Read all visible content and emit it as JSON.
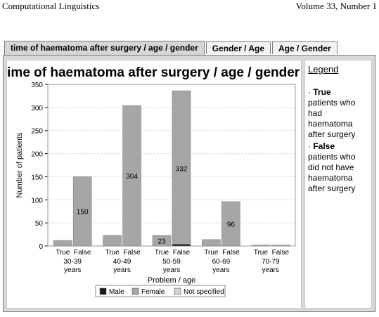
{
  "running_head": {
    "left": "Computational Linguistics",
    "right": "Volume 33, Number 1"
  },
  "tabs": [
    {
      "label": "time of haematoma after surgery / age / gender",
      "active": true
    },
    {
      "label": "Gender / Age",
      "active": false
    },
    {
      "label": "Age / Gender",
      "active": false
    }
  ],
  "side_panel": {
    "title": "Legend",
    "entries": [
      {
        "term": "True",
        "text": "patients who had haematoma after surgery"
      },
      {
        "term": "False",
        "text": "patients who did not have haematoma after surgery"
      }
    ]
  },
  "colors": {
    "male": "#1a1a1a",
    "female": "#a6a6a6",
    "not_specified": "#d3d3d3",
    "grid": "#d9d9d9"
  },
  "chart_data": {
    "type": "bar",
    "stacked": true,
    "title": "time of haematoma after surgery / age / gender",
    "xlabel": "Problem / age",
    "ylabel": "Number of patients",
    "ylim": [
      0,
      350
    ],
    "yticks": [
      "0",
      "50",
      "100",
      "150",
      "200",
      "250",
      "300",
      "350"
    ],
    "grid": true,
    "legend_position": "bottom",
    "groups": [
      {
        "label": [
          "30-39",
          "years"
        ],
        "bars": [
          "True",
          "False"
        ]
      },
      {
        "label": [
          "40-49",
          "years"
        ],
        "bars": [
          "True",
          "False"
        ]
      },
      {
        "label": [
          "50-59",
          "years"
        ],
        "bars": [
          "True",
          "False"
        ]
      },
      {
        "label": [
          "60-69",
          "years"
        ],
        "bars": [
          "True",
          "False"
        ]
      },
      {
        "label": [
          "70-79",
          "years"
        ],
        "bars": [
          "True",
          "False"
        ]
      }
    ],
    "series": [
      {
        "name": "Male",
        "color_key": "male",
        "values": [
          [
            0,
            0
          ],
          [
            0,
            0
          ],
          [
            0,
            4
          ],
          [
            0,
            0
          ],
          [
            0,
            0
          ]
        ]
      },
      {
        "name": "Female",
        "color_key": "female",
        "values": [
          [
            12,
            150
          ],
          [
            23,
            304
          ],
          [
            23,
            332
          ],
          [
            14,
            96
          ],
          [
            2,
            2
          ]
        ]
      },
      {
        "name": "Not specified",
        "color_key": "not_specified",
        "values": [
          [
            0,
            0
          ],
          [
            0,
            0
          ],
          [
            0,
            0
          ],
          [
            0,
            0
          ],
          [
            0,
            0
          ]
        ]
      }
    ],
    "data_labels": [
      {
        "group": 0,
        "bar": 1,
        "text": "150"
      },
      {
        "group": 1,
        "bar": 1,
        "text": "304"
      },
      {
        "group": 2,
        "bar": 0,
        "text": "23"
      },
      {
        "group": 2,
        "bar": 1,
        "text": "332"
      },
      {
        "group": 3,
        "bar": 1,
        "text": "96"
      }
    ]
  }
}
